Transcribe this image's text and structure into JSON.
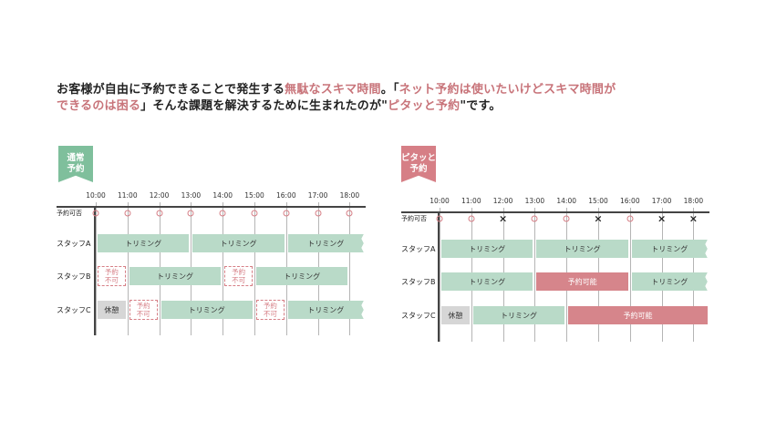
{
  "headline": {
    "p1": "お客様が自由に予約できることで発生する",
    "p2": "無駄なスキマ時間",
    "p3": "。「",
    "p4": "ネット予約は使いたいけどスキマ時間が",
    "p5": "できるのは困る",
    "p6": "」そんな課題を解決するために生まれたのが\"",
    "p7": "ピタッと予約",
    "p8": "\"です。"
  },
  "colors": {
    "accent": "#c8747a",
    "green": "#7fbf9c",
    "trim_bar": "#b9dac8",
    "booking_bar": "#d6858b",
    "rest_bar": "#d6d6d6"
  },
  "times": [
    "10:00",
    "11:00",
    "12:00",
    "13:00",
    "14:00",
    "15:00",
    "16:00",
    "17:00",
    "18:00"
  ],
  "left": {
    "tag": [
      "通常",
      "予約"
    ],
    "availability_label": "予約可否",
    "availability": [
      "○",
      "○",
      "○",
      "○",
      "○",
      "○",
      "○",
      "○",
      "○"
    ],
    "rows": [
      {
        "label": "スタッフA",
        "bars": [
          {
            "type": "trim",
            "start": 10,
            "end": 13,
            "text": "トリミング"
          },
          {
            "type": "trim",
            "start": 13,
            "end": 16,
            "text": "トリミング"
          },
          {
            "type": "trim",
            "start": 16,
            "end": 18.5,
            "text": "トリミング",
            "torn": true
          }
        ]
      },
      {
        "label": "スタッフB",
        "bars": [
          {
            "type": "ng",
            "start": 10,
            "end": 11,
            "text": [
              "予約",
              "不可"
            ]
          },
          {
            "type": "trim",
            "start": 11,
            "end": 14,
            "text": "トリミング"
          },
          {
            "type": "ng",
            "start": 14,
            "end": 15,
            "text": [
              "予約",
              "不可"
            ]
          },
          {
            "type": "trim",
            "start": 15,
            "end": 18,
            "text": "トリミング"
          }
        ]
      },
      {
        "label": "スタッフC",
        "bars": [
          {
            "type": "rest",
            "start": 10,
            "end": 11,
            "text": "休憩"
          },
          {
            "type": "ng",
            "start": 11,
            "end": 12,
            "text": [
              "予約",
              "不可"
            ]
          },
          {
            "type": "trim",
            "start": 12,
            "end": 15,
            "text": "トリミング"
          },
          {
            "type": "ng",
            "start": 15,
            "end": 16,
            "text": [
              "予約",
              "不可"
            ]
          },
          {
            "type": "trim",
            "start": 16,
            "end": 18.5,
            "text": "トリミング",
            "torn": true
          }
        ]
      }
    ]
  },
  "right": {
    "tag": [
      "ピタッと",
      "予約"
    ],
    "availability_label": "予約可否",
    "availability": [
      "○",
      "○",
      "×",
      "○",
      "○",
      "×",
      "○",
      "×",
      "×"
    ],
    "rows": [
      {
        "label": "スタッフA",
        "bars": [
          {
            "type": "trim",
            "start": 10,
            "end": 13,
            "text": "トリミング"
          },
          {
            "type": "trim",
            "start": 13,
            "end": 16,
            "text": "トリミング"
          },
          {
            "type": "trim",
            "start": 16,
            "end": 18.5,
            "text": "トリミング",
            "torn": true
          }
        ]
      },
      {
        "label": "スタッフB",
        "bars": [
          {
            "type": "trim",
            "start": 10,
            "end": 13,
            "text": "トリミング"
          },
          {
            "type": "book",
            "start": 13,
            "end": 16,
            "text": "予約可能"
          },
          {
            "type": "trim",
            "start": 16,
            "end": 18.5,
            "text": "トリミング",
            "torn": true
          }
        ]
      },
      {
        "label": "スタッフC",
        "bars": [
          {
            "type": "rest",
            "start": 10,
            "end": 11,
            "text": "休憩"
          },
          {
            "type": "trim",
            "start": 11,
            "end": 14,
            "text": "トリミング"
          },
          {
            "type": "book",
            "start": 14,
            "end": 18.5,
            "text": "予約可能",
            "torn": true
          }
        ]
      }
    ]
  }
}
